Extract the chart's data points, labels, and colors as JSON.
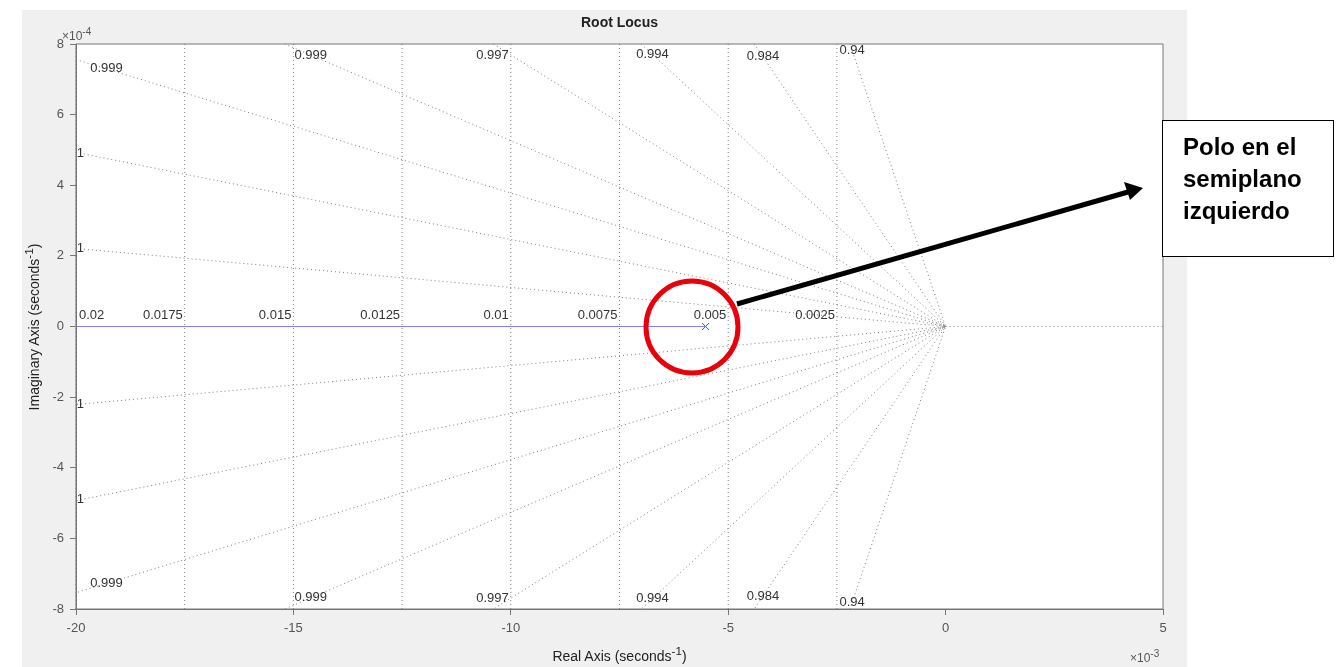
{
  "chart_data": {
    "type": "line",
    "title": "Root Locus",
    "xlabel": "Real Axis (seconds$^{-1}$)",
    "ylabel": "Imaginary Axis (seconds$^{-1}$)",
    "xlim": [
      -20,
      5
    ],
    "xticks": [
      -20,
      -15,
      -10,
      -5,
      0,
      5
    ],
    "ylim": [
      -8,
      8
    ],
    "yticks": [
      -8,
      -6,
      -4,
      -2,
      0,
      2,
      4,
      6,
      8
    ],
    "grid": false,
    "legend": false,
    "series": [
      {
        "color": "#7f7fff",
        "x": [
          -20,
          -5.52
        ],
        "values": [
          0,
          0
        ],
        "marker": "none",
        "line_style": "solid"
      },
      {
        "type": "scatter",
        "color": "#0072bd",
        "x": [
          -5.52
        ],
        "values": [
          0
        ],
        "marker": "cross"
      },
      {
        "color": "#808080",
        "x": [
          -20,
          0,
          -20
        ],
        "values": [
          7.56,
          0,
          -7.54
        ],
        "marker": "none",
        "line_style": "dotted"
      },
      {
        "color": "#808080",
        "x": [
          -20,
          0,
          -20
        ],
        "values": [
          4.93,
          0,
          -4.93
        ],
        "marker": "none",
        "line_style": "dotted"
      },
      {
        "color": "#808080",
        "x": [
          -20,
          0,
          -20
        ],
        "values": [
          2.21,
          0,
          -2.21
        ],
        "marker": "none",
        "line_style": "dotted"
      },
      {
        "color": "#808080",
        "x": [
          -15.2,
          0,
          -15.2
        ],
        "values": [
          8,
          0,
          -8
        ],
        "marker": "none",
        "line_style": "dotted"
      },
      {
        "color": "#808080",
        "x": [
          -10.4,
          0,
          -10.4
        ],
        "values": [
          8,
          0,
          -8
        ],
        "marker": "none",
        "line_style": "dotted"
      },
      {
        "color": "#808080",
        "x": [
          -7.0,
          0,
          -7.0
        ],
        "values": [
          8,
          0,
          -8
        ],
        "marker": "none",
        "line_style": "dotted"
      },
      {
        "color": "#808080",
        "x": [
          -4.4,
          0,
          -4.4
        ],
        "values": [
          8,
          0,
          -8
        ],
        "marker": "none",
        "line_style": "dotted"
      },
      {
        "color": "#808080",
        "x": [
          -2.2,
          0,
          -2.2
        ],
        "values": [
          8,
          0,
          -8
        ],
        "marker": "none",
        "line_style": "dotted"
      },
      {
        "color": "#808080",
        "x": [
          0,
          5
        ],
        "values": [
          0,
          0
        ],
        "marker": "none",
        "line_style": "dotted"
      }
    ],
    "ref_lines": [
      {
        "axis": "x",
        "value": -20,
        "color": "#808080",
        "line_style": "dotted"
      },
      {
        "axis": "x",
        "value": -17.5,
        "color": "#808080",
        "line_style": "dotted"
      },
      {
        "axis": "x",
        "value": -15,
        "color": "#808080",
        "line_style": "dotted"
      },
      {
        "axis": "x",
        "value": -12.5,
        "color": "#808080",
        "line_style": "dotted"
      },
      {
        "axis": "x",
        "value": -10,
        "color": "#808080",
        "line_style": "dotted"
      },
      {
        "axis": "x",
        "value": -7.5,
        "color": "#808080",
        "line_style": "dotted"
      },
      {
        "axis": "x",
        "value": -5,
        "color": "#808080",
        "line_style": "dotted"
      },
      {
        "axis": "x",
        "value": -2.5,
        "color": "#808080",
        "line_style": "dotted"
      }
    ],
    "annotations": [
      "×10$^{-4}$",
      "×10$^{-3}$",
      "Polo en el semiplano izquierdo",
      {
        "text": "0.02",
        "x": -20,
        "y": 0.3
      },
      {
        "text": "0.0175",
        "x": -17.5,
        "y": 0.3
      },
      {
        "text": "0.015",
        "x": -15,
        "y": 0.3
      },
      {
        "text": "0.0125",
        "x": -12.5,
        "y": 0.3
      },
      {
        "text": "0.01",
        "x": -10,
        "y": 0.3
      },
      {
        "text": "0.0075",
        "x": -7.5,
        "y": 0.3
      },
      {
        "text": "0.005",
        "x": -5,
        "y": 0.3
      },
      {
        "text": "0.0025",
        "x": -2.5,
        "y": 0.3
      },
      {
        "text": "0.999",
        "x": -19.3,
        "y": 7.3
      },
      {
        "text": "1",
        "x": -19.9,
        "y": 4.9
      },
      {
        "text": "1",
        "x": -19.9,
        "y": 2.2
      },
      {
        "text": "0.999",
        "x": -14.6,
        "y": 7.68
      },
      {
        "text": "0.997",
        "x": -10.0,
        "y": 7.69
      },
      {
        "text": "0.994",
        "x": -6.74,
        "y": 7.7
      },
      {
        "text": "0.984",
        "x": -4.2,
        "y": 7.64
      },
      {
        "text": "0.94",
        "x": -2.15,
        "y": 7.82
      },
      {
        "text": "0.999",
        "x": -19.3,
        "y": -7.28
      },
      {
        "text": "1",
        "x": -19.9,
        "y": -2.2
      },
      {
        "text": "1",
        "x": -19.9,
        "y": -4.9
      },
      {
        "text": "0.999",
        "x": -14.6,
        "y": -7.68
      },
      {
        "text": "0.997",
        "x": -10.0,
        "y": -7.69
      },
      {
        "text": "0.994",
        "x": -6.74,
        "y": -7.7
      },
      {
        "text": "0.984",
        "x": -4.2,
        "y": -7.64
      },
      {
        "text": "0.94",
        "x": -2.15,
        "y": -7.82
      }
    ]
  }
}
